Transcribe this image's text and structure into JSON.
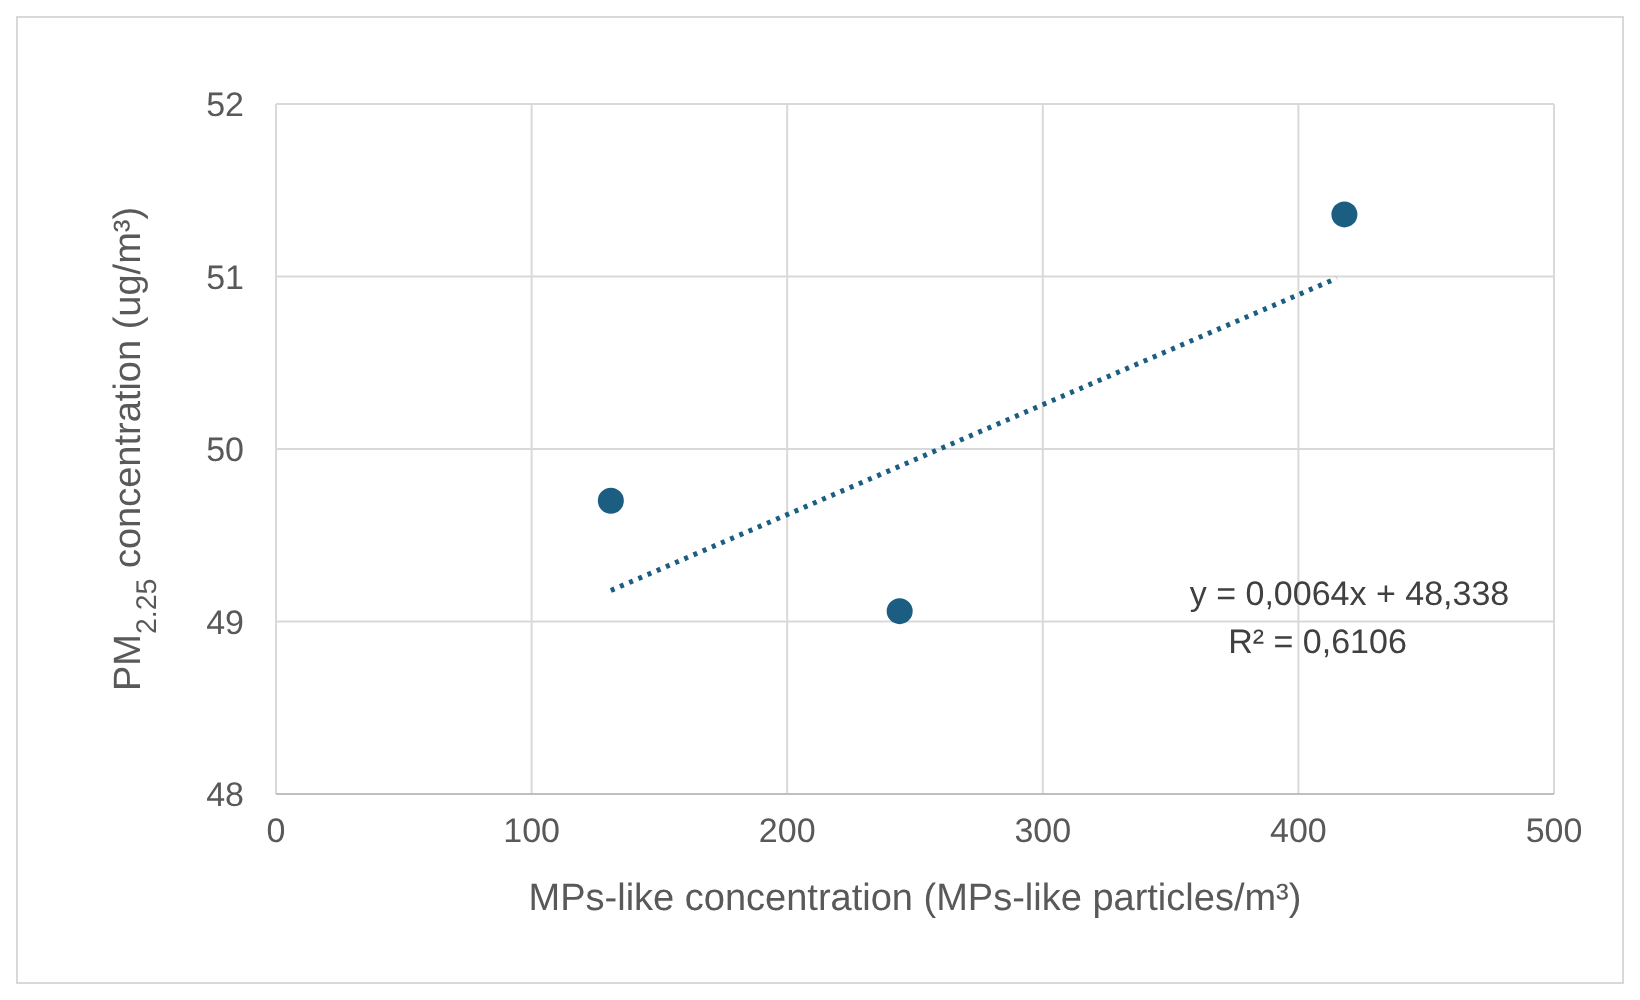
{
  "chart_data": {
    "type": "scatter",
    "xlabel": "MPs-like concentration (MPs-like particles/m³)",
    "ylabel": "PM$_{2.25}$ concentration (ug/m³)",
    "xlim": [
      0,
      500
    ],
    "xticks": [
      0,
      100,
      200,
      300,
      400,
      500
    ],
    "ylim": [
      48,
      52
    ],
    "yticks": [
      48,
      49,
      50,
      51,
      52
    ],
    "grid": true,
    "series": [
      {
        "color": "#1b5e82",
        "marker": "circle",
        "x": [
          131,
          244,
          418
        ],
        "values": [
          49.7,
          49.06,
          51.36
        ]
      },
      {
        "type": "line",
        "color": "#1b5e82",
        "line_style": "dotted",
        "marker": "none",
        "x": [
          131,
          415
        ],
        "values": [
          49.18,
          50.99
        ]
      }
    ],
    "annotations": [
      "y = 0,0064x + 48,338",
      "R² = 0,6106"
    ]
  }
}
